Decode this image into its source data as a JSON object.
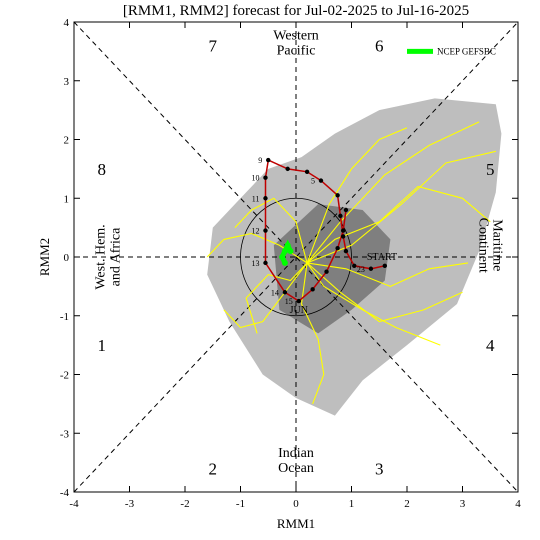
{
  "chart_data": {
    "type": "scatter",
    "title": "[RMM1, RMM2] forecast for Jul-02-2025 to Jul-16-2025",
    "xlabel": "RMM1",
    "ylabel": "RMM2",
    "xlim": [
      -4,
      4
    ],
    "ylim": [
      -4,
      4
    ],
    "x_ticks": [
      "-4",
      "-3",
      "-2",
      "-1",
      "0",
      "1",
      "2",
      "3",
      "4"
    ],
    "y_ticks": [
      "-4",
      "-3",
      "-2",
      "-1",
      "0",
      "1",
      "2",
      "3",
      "4"
    ],
    "phase_numbers": [
      "1",
      "2",
      "3",
      "4",
      "5",
      "6",
      "7",
      "8"
    ],
    "region_labels": {
      "top": [
        "Western",
        "Pacific"
      ],
      "bottom": [
        "Indian",
        "Ocean"
      ],
      "left": [
        "West. Hem.",
        "and Africa"
      ],
      "right": [
        "Maritime",
        "Continent"
      ]
    },
    "legend": {
      "placement": "top-right",
      "entries": [
        {
          "name": "NCEP GEFSBC",
          "color": "#00ff00"
        }
      ]
    },
    "colors": {
      "outer_spread": "#bebebe",
      "inner_spread": "#7f7f7f",
      "ensemble_members": "#ffff00",
      "observed_track": "#c00000",
      "ensemble_mean": "#00ff00",
      "month_label": "#c00000",
      "start_label": "#4b0082"
    },
    "month_label": "JUN",
    "start_label": "START",
    "outer_spread_polygon": [
      [
        0.1,
        1.7
      ],
      [
        0.7,
        2.1
      ],
      [
        1.5,
        2.5
      ],
      [
        2.5,
        2.7
      ],
      [
        3.6,
        2.6
      ],
      [
        3.7,
        2.1
      ],
      [
        3.6,
        1.1
      ],
      [
        3.3,
        0.1
      ],
      [
        2.9,
        -0.8
      ],
      [
        2.0,
        -1.5
      ],
      [
        1.2,
        -2.1
      ],
      [
        0.7,
        -2.7
      ],
      [
        0.0,
        -2.4
      ],
      [
        -0.6,
        -2.0
      ],
      [
        -1.2,
        -1.1
      ],
      [
        -1.6,
        -0.3
      ],
      [
        -1.5,
        0.5
      ],
      [
        -1.0,
        1.0
      ],
      [
        -0.5,
        1.5
      ]
    ],
    "inner_spread_polygon": [
      [
        0.4,
        0.9
      ],
      [
        1.2,
        0.8
      ],
      [
        1.7,
        0.3
      ],
      [
        1.6,
        -0.4
      ],
      [
        1.0,
        -0.9
      ],
      [
        0.4,
        -1.3
      ],
      [
        -0.3,
        -0.9
      ],
      [
        -0.4,
        0.2
      ]
    ],
    "ensemble_members": [
      [
        [
          0.2,
          -0.1
        ],
        [
          0.8,
          0.6
        ],
        [
          1.6,
          1.4
        ],
        [
          2.4,
          1.9
        ],
        [
          3.3,
          2.3
        ]
      ],
      [
        [
          0.2,
          -0.1
        ],
        [
          0.7,
          0.3
        ],
        [
          1.5,
          0.6
        ],
        [
          2.2,
          1.2
        ],
        [
          3.0,
          1.0
        ],
        [
          3.5,
          0.6
        ]
      ],
      [
        [
          0.2,
          -0.1
        ],
        [
          0.9,
          -0.2
        ],
        [
          1.7,
          -0.5
        ],
        [
          2.4,
          -0.2
        ],
        [
          3.1,
          -0.1
        ]
      ],
      [
        [
          0.2,
          -0.1
        ],
        [
          0.5,
          -0.5
        ],
        [
          1.2,
          -0.9
        ],
        [
          1.8,
          -1.2
        ],
        [
          2.6,
          -1.5
        ]
      ],
      [
        [
          0.2,
          -0.1
        ],
        [
          0.1,
          -0.8
        ],
        [
          0.4,
          -1.4
        ],
        [
          0.5,
          -2.0
        ],
        [
          0.3,
          -2.5
        ]
      ],
      [
        [
          0.2,
          -0.1
        ],
        [
          -0.2,
          -0.6
        ],
        [
          -0.6,
          -1.1
        ],
        [
          -1.0,
          -1.2
        ],
        [
          -1.3,
          -0.9
        ]
      ],
      [
        [
          0.2,
          -0.1
        ],
        [
          -0.3,
          0.2
        ],
        [
          -0.8,
          0.4
        ],
        [
          -1.3,
          0.3
        ],
        [
          -1.6,
          0.0
        ]
      ],
      [
        [
          0.2,
          -0.1
        ],
        [
          0.0,
          0.6
        ],
        [
          -0.4,
          1.0
        ],
        [
          -0.8,
          0.8
        ],
        [
          -1.1,
          0.5
        ]
      ],
      [
        [
          0.2,
          -0.1
        ],
        [
          0.6,
          0.9
        ],
        [
          1.0,
          1.5
        ],
        [
          1.5,
          2.0
        ],
        [
          2.0,
          2.2
        ]
      ],
      [
        [
          0.2,
          -0.1
        ],
        [
          1.0,
          0.2
        ],
        [
          1.9,
          0.9
        ],
        [
          2.7,
          1.6
        ],
        [
          3.6,
          1.8
        ]
      ],
      [
        [
          0.2,
          -0.1
        ],
        [
          0.8,
          -0.6
        ],
        [
          1.5,
          -1.1
        ],
        [
          2.3,
          -0.9
        ],
        [
          3.0,
          -0.6
        ]
      ],
      [
        [
          0.2,
          -0.1
        ],
        [
          -0.1,
          -0.4
        ],
        [
          -0.5,
          -0.3
        ],
        [
          -0.9,
          -0.7
        ],
        [
          -0.7,
          -1.3
        ]
      ]
    ],
    "ensemble_mean": [
      [
        -0.2,
        -0.1
      ],
      [
        -0.25,
        0.0
      ],
      [
        -0.2,
        0.1
      ],
      [
        -0.15,
        0.2
      ],
      [
        -0.1,
        0.1
      ]
    ],
    "observed_track": [
      {
        "label": "",
        "x": 1.6,
        "y": -0.15
      },
      {
        "label": "23",
        "x": 1.35,
        "y": -0.2
      },
      {
        "label": "",
        "x": 1.05,
        "y": -0.15
      },
      {
        "label": "",
        "x": 0.9,
        "y": 0.1
      },
      {
        "label": "",
        "x": 0.85,
        "y": 0.35
      },
      {
        "label": "",
        "x": 0.8,
        "y": 0.7
      },
      {
        "label": "",
        "x": 0.75,
        "y": 1.05
      },
      {
        "label": "5",
        "x": 0.45,
        "y": 1.3
      },
      {
        "label": "",
        "x": 0.2,
        "y": 1.45
      },
      {
        "label": "",
        "x": -0.15,
        "y": 1.5
      },
      {
        "label": "9",
        "x": -0.5,
        "y": 1.65
      },
      {
        "label": "10",
        "x": -0.55,
        "y": 1.35
      },
      {
        "label": "11",
        "x": -0.55,
        "y": 1.0
      },
      {
        "label": "12",
        "x": -0.55,
        "y": 0.45
      },
      {
        "label": "13",
        "x": -0.55,
        "y": -0.1
      },
      {
        "label": "14",
        "x": -0.2,
        "y": -0.6
      },
      {
        "label": "15",
        "x": 0.05,
        "y": -0.75
      },
      {
        "label": "",
        "x": 0.3,
        "y": -0.55
      },
      {
        "label": "",
        "x": 0.55,
        "y": -0.25
      },
      {
        "label": "",
        "x": 0.75,
        "y": 0.15
      },
      {
        "label": "",
        "x": 0.85,
        "y": 0.45
      },
      {
        "label": "",
        "x": 0.9,
        "y": 0.8
      }
    ],
    "circle_radius": 1
  }
}
